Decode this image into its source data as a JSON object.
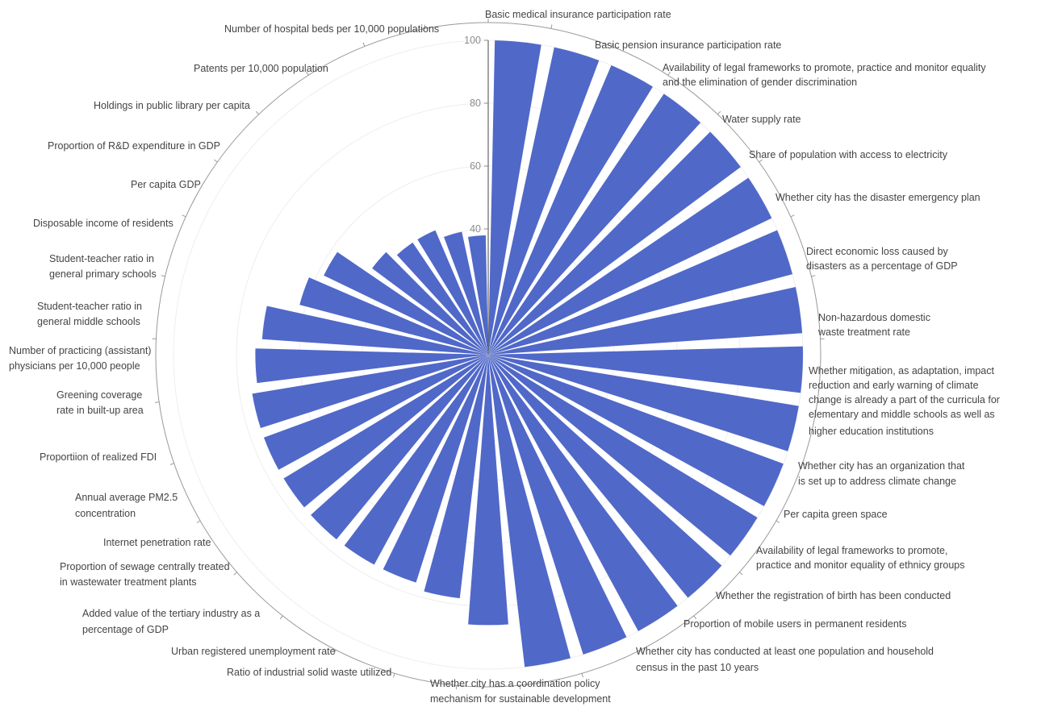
{
  "chart_data": {
    "type": "bar",
    "subtype": "polar-radial-bar",
    "ylim": [
      0,
      100
    ],
    "yticks": [
      40,
      60,
      80,
      100
    ],
    "ytick_labels": [
      "40",
      "60",
      "80",
      "100"
    ],
    "grid": true,
    "bar_color": "#5068c8",
    "categories": [
      "Basic medical insurance participation rate",
      "Basic pension insurance participation rate",
      "Availability of legal frameworks to promote, practice and monitor equality and the elimination of gender discrimination",
      "Water supply rate",
      "Share of population with access to electricity",
      "Whether city has the disaster emergency plan",
      "Direct economic loss caused by disasters as a percentage of GDP",
      "Non-hazardous domestic waste treatment rate",
      "Whether mitigation, as adaptation, impact reduction and early warning of climate change is already a part of the curricula for elementary and middle schools as well as higher education institutions",
      "Whether city has an organization that is set up to address climate change",
      "Per capita green space",
      "Availability of legal frameworks to promote, practice and monitor equality of ethnicy groups",
      "Whether the registration of birth has been conducted",
      "Proportion of mobile users in permanent residents",
      "Whether city has conducted at least one population and household census in the past 10 years",
      "Whether city has a coordination policy mechanism for sustainable development",
      "Ratio of industrial solid waste utilized",
      "Urban registered unemployment rate",
      "Added value of the tertiary industry as a percentage of GDP",
      "Proportion of sewage centrally treated in wastewater treatment plants",
      "Internet penetration rate",
      "Annual average PM2.5 concentration",
      "Proportiion of realized FDI",
      "Greening coverage rate in built-up area",
      "Number of practicing (assistant) physicians per 10,000 people",
      "Student-teacher ratio in general middle schools",
      "Student-teacher ratio in general primary schools",
      "Disposable income of residents",
      "Per capita GDP",
      "Proportion of R&D expenditure in GDP",
      "Holdings in public library per capita",
      "Patents per 10,000 population",
      "Number of hospital beds per 10,000 populations"
    ],
    "values": [
      100,
      100,
      100,
      100,
      100,
      100,
      100,
      100,
      100,
      100,
      100,
      100,
      100,
      100,
      100,
      100,
      86,
      78,
      76,
      76,
      76,
      76,
      76,
      76,
      74,
      72,
      62,
      58,
      46,
      43,
      43,
      40,
      38
    ]
  },
  "labels": [
    "Basic medical insurance participation rate",
    "Basic pension insurance participation rate",
    "Availability of legal frameworks to promote, practice and monitor equality",
    "and the elimination of gender discrimination",
    "Water supply rate",
    "Share of population with access to electricity",
    "Whether city has the disaster emergency plan",
    "Direct economic loss caused by",
    "disasters as a percentage of GDP",
    "Non-hazardous domestic",
    "waste treatment rate",
    "Whether mitigation, as adaptation, impact",
    "reduction and early warning of climate",
    "change is already a part of the curricula for",
    "elementary and middle schools as well as",
    "higher education institutions",
    "Whether city has an organization that",
    "is set up to address climate change",
    "Per capita green space",
    "Availability of legal frameworks to promote,",
    "practice and monitor equality of ethnicy groups",
    "Whether the registration of birth has been conducted",
    "Proportion of mobile users in permanent residents",
    "Whether city has conducted at least one population and household",
    "census in the past 10 years",
    "Whether city has a coordination policy",
    "mechanism for sustainable development",
    "Ratio of industrial solid waste utilized",
    "Urban registered unemployment rate",
    "Added value of the tertiary industry as a",
    "percentage of GDP",
    "Proportion of sewage centrally treated",
    "in wastewater treatment plants",
    "Internet penetration rate",
    "Annual average PM2.5",
    "concentration",
    "Proportiion of realized FDI",
    "Greening coverage",
    "rate in built-up area",
    "Number of practicing (assistant)",
    "physicians per 10,000 people",
    "Student-teacher ratio in",
    "general middle schools",
    "Student-teacher ratio in",
    "general primary schools",
    "Disposable income of residents",
    "Per capita GDP",
    "Proportion of R&D expenditure in GDP",
    "Holdings in public library per capita",
    "Patents per 10,000 population",
    "Number of hospital beds per 10,000 populations"
  ]
}
